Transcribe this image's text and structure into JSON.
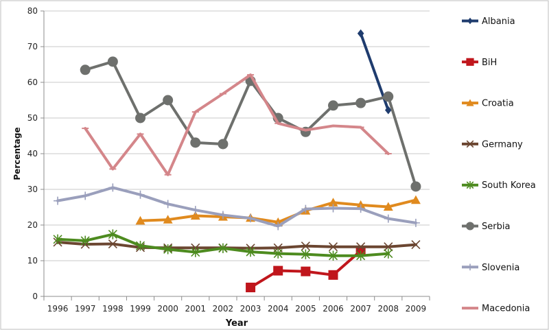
{
  "chart_data": {
    "type": "line",
    "xlabel": "Year",
    "ylabel": "Percentage",
    "ylim": [
      0,
      80
    ],
    "yticks": [
      0,
      10,
      20,
      30,
      40,
      50,
      60,
      70,
      80
    ],
    "categories": [
      "1996",
      "1997",
      "1998",
      "1999",
      "2000",
      "2001",
      "2002",
      "2003",
      "2004",
      "2005",
      "2006",
      "2007",
      "2008",
      "2009"
    ],
    "grid": "horizontal",
    "legend_position": "right",
    "series": [
      {
        "name": "Albania",
        "color": "#1f3c6e",
        "marker": "diamond",
        "values": [
          null,
          null,
          null,
          null,
          null,
          null,
          null,
          null,
          null,
          null,
          null,
          73.7,
          52.2,
          null
        ]
      },
      {
        "name": "BiH",
        "color": "#c0161c",
        "marker": "square",
        "values": [
          null,
          null,
          null,
          null,
          null,
          null,
          null,
          2.5,
          7.2,
          7.0,
          6.0,
          12.8,
          null,
          null
        ]
      },
      {
        "name": "Croatia",
        "color": "#e08a1e",
        "marker": "triangle",
        "values": [
          null,
          null,
          null,
          21.2,
          21.5,
          22.6,
          22.3,
          22.0,
          20.8,
          24.0,
          26.3,
          25.6,
          25.1,
          27.0
        ]
      },
      {
        "name": "Germany",
        "color": "#6b4631",
        "marker": "x",
        "values": [
          15.2,
          14.6,
          14.7,
          13.7,
          13.6,
          13.6,
          13.6,
          13.5,
          13.6,
          14.1,
          13.9,
          13.9,
          13.9,
          14.5
        ]
      },
      {
        "name": "South Korea",
        "color": "#4d8b1f",
        "marker": "star",
        "values": [
          16.0,
          15.6,
          17.4,
          14.2,
          13.2,
          12.4,
          13.5,
          12.5,
          12.0,
          11.8,
          11.4,
          11.4,
          12.0,
          null
        ]
      },
      {
        "name": "Serbia",
        "color": "#6e706d",
        "marker": "circle",
        "values": [
          null,
          63.5,
          65.8,
          50.0,
          55.0,
          43.1,
          42.7,
          60.4,
          50.0,
          46.1,
          53.5,
          54.2,
          56.0,
          30.8
        ]
      },
      {
        "name": "Slovenia",
        "color": "#9a9fbc",
        "marker": "plus",
        "values": [
          26.8,
          28.2,
          30.5,
          28.5,
          25.9,
          24.2,
          22.8,
          21.9,
          19.7,
          24.5,
          24.7,
          24.6,
          21.8,
          20.6
        ]
      },
      {
        "name": "Macedonia",
        "color": "#d4868a",
        "marker": "dash",
        "values": [
          null,
          47.1,
          35.7,
          45.5,
          34.1,
          51.7,
          56.8,
          62.1,
          48.5,
          46.6,
          47.8,
          47.4,
          40.0,
          null
        ]
      }
    ]
  }
}
